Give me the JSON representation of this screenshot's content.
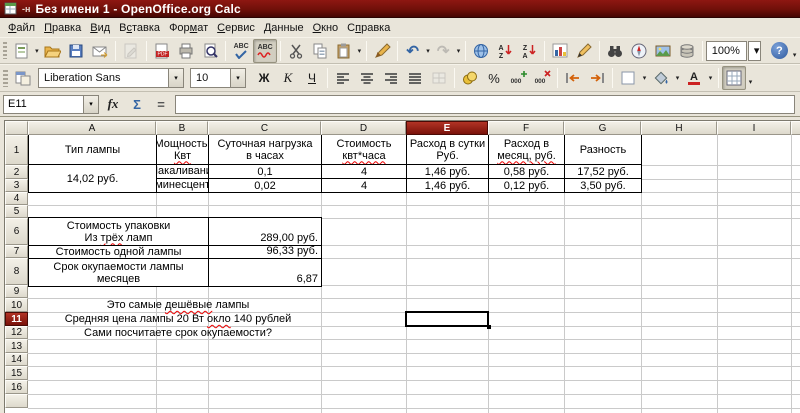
{
  "window": {
    "title": "Без имени 1 - OpenOffice.org Calc",
    "mark": "-ʜ"
  },
  "menu": {
    "items": [
      {
        "name": "file",
        "pre": "",
        "u": "Ф",
        "post": "айл"
      },
      {
        "name": "edit",
        "pre": "",
        "u": "П",
        "post": "равка"
      },
      {
        "name": "view",
        "pre": "",
        "u": "В",
        "post": "ид"
      },
      {
        "name": "insert",
        "pre": "В",
        "u": "с",
        "post": "тавка"
      },
      {
        "name": "format",
        "pre": "Фор",
        "u": "м",
        "post": "ат"
      },
      {
        "name": "tools",
        "pre": "",
        "u": "С",
        "post": "ервис"
      },
      {
        "name": "data",
        "pre": "",
        "u": "Д",
        "post": "анные"
      },
      {
        "name": "window",
        "pre": "",
        "u": "О",
        "post": "кно"
      },
      {
        "name": "help",
        "pre": "С",
        "u": "п",
        "post": "равка"
      }
    ]
  },
  "toolbar": {
    "zoom_value": "100%",
    "abc_label": "ABC",
    "pdf_label": "PDF",
    "sort_a": "A",
    "sort_z": "Z",
    "help_label": "?"
  },
  "format_toolbar": {
    "font_name": "Liberation Sans",
    "font_size": "10",
    "bold_label": "Ж",
    "italic_label": "К",
    "underline_label": "Ч",
    "percent_label": "%",
    "dec_label": "000",
    "font_color_letter": "А"
  },
  "formula_bar": {
    "cell_ref": "E11",
    "fx_label": "fx",
    "sum_label": "Σ",
    "eq_label": "=",
    "input_value": ""
  },
  "grid": {
    "col_headers": [
      "A",
      "B",
      "C",
      "D",
      "E",
      "F",
      "G",
      "H",
      "I"
    ],
    "row_headers": [
      "1",
      "2",
      "3",
      "4",
      "5",
      "6",
      "7",
      "8",
      "9",
      "10",
      "11",
      "12",
      "13",
      "14",
      "15",
      "16",
      ""
    ],
    "selected_col": "E",
    "selected_row": "11",
    "table1": {
      "h_a": "Тип лампы",
      "h_b1": "Мощность,",
      "h_b2": "Квт",
      "h_c1": "Суточная нагрузка",
      "h_c2": "в часах",
      "h_d1": "Стоимость",
      "h_d2": "квт*часа",
      "h_e1": "Расход в сутки",
      "h_e2": "Руб.",
      "h_f1": "Расход в",
      "h_f2": "месяц, руб.",
      "h_g": "Разность",
      "rows": [
        {
          "type": "Накаливания",
          "power": "0,1",
          "hours": "4",
          "cost": "1,46 руб.",
          "per_day": "0,58 руб.",
          "per_month": "17,52 руб."
        },
        {
          "type": "Люминесцентная",
          "power": "0,02",
          "hours": "4",
          "cost": "1,46 руб.",
          "per_day": "0,12 руб.",
          "per_month": "3,50 руб."
        }
      ],
      "difference": "14,02 руб."
    },
    "table2": {
      "r6_label1": "Стоимость упаковки",
      "r6_pre": "Из ",
      "r6_word": "трёх",
      "r6_post": " ламп",
      "r6_value": "289,00 руб.",
      "r7_label": "Стоимость одной лампы",
      "r7_value": "96,33 руб.",
      "r8_label1": "Срок окупаемости лампы",
      "r8_label2": "месяцев",
      "r8_value": "6,87"
    },
    "notes": {
      "r10_pre": "Это самые ",
      "r10_word": "дешёвые",
      "r10_post": " лампы",
      "r11_pre": "Средняя цена лампы 20 Вт ",
      "r11_word": "окло",
      "r11_post": " 140 рублей",
      "r12_text": "Сами посчитаете срок окупаемости?"
    }
  }
}
